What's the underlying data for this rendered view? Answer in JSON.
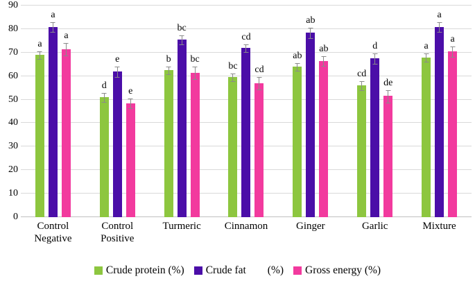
{
  "chart_data": {
    "type": "bar",
    "title": "",
    "xlabel": "",
    "ylabel": "",
    "ylim": [
      0,
      90
    ],
    "yticks": [
      0,
      10,
      20,
      30,
      40,
      50,
      60,
      70,
      80,
      90
    ],
    "grid": true,
    "legend_position": "bottom",
    "categories": [
      "Control Negative",
      "Control Positive",
      "Turmeric",
      "Cinnamon",
      "Ginger",
      "Garlic",
      "Mixture"
    ],
    "series": [
      {
        "name": "Crude protein (%)",
        "legend_label": "Crude protein (%)",
        "color": "#8DC63F",
        "values": [
          69,
          51,
          62.5,
          59.5,
          64,
          56,
          68
        ],
        "errors": [
          1.5,
          1.8,
          1.5,
          1.5,
          1.5,
          1.8,
          1.5
        ],
        "letters": [
          "a",
          "d",
          "b",
          "bc",
          "ab",
          "cd",
          "a"
        ]
      },
      {
        "name": "Crude fat (%)",
        "legend_label": "Crude fat        (%)",
        "color": "#4B0EA8",
        "values": [
          81,
          62,
          75.5,
          72,
          78.5,
          67.5,
          81
        ],
        "errors": [
          2,
          2,
          1.8,
          1.5,
          2,
          2,
          1.8
        ],
        "letters": [
          "a",
          "e",
          "bc",
          "cd",
          "ab",
          "d",
          "a"
        ]
      },
      {
        "name": "Gross energy (%)",
        "legend_label": "Gross energy (%)",
        "color": "#F23A9E",
        "values": [
          71.5,
          48.5,
          61.5,
          57,
          66.5,
          51.5,
          70.5
        ],
        "errors": [
          2.5,
          2,
          2.5,
          2.5,
          2,
          2.5,
          2
        ],
        "letters": [
          "a",
          "e",
          "bc",
          "cd",
          "ab",
          "de",
          "a"
        ]
      }
    ],
    "colors": {
      "grid": "#d9d9d9",
      "axis": "#bfbfbf",
      "error_bar": "#8a8a8a",
      "text": "#000000"
    }
  }
}
